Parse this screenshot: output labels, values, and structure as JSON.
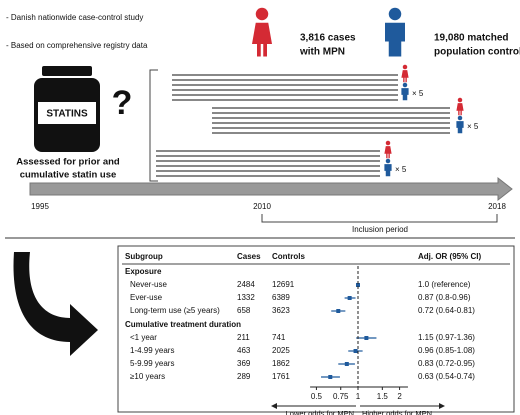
{
  "bullets": [
    "- Danish nationwide case-control study",
    "- Based on comprehensive registry data"
  ],
  "cases_lines": [
    "3,816 cases",
    "with MPN"
  ],
  "controls_lines": [
    "19,080 matched",
    "population controls"
  ],
  "jar_label": "STATINS",
  "question": "?",
  "assessed_lines": [
    "Assessed for prior and",
    "cumulative statin use"
  ],
  "multiplier": "× 5",
  "timeline": {
    "years": [
      "1995",
      "2010",
      "2018"
    ],
    "inclusion_period": "Inclusion period"
  },
  "forest": {
    "headers": [
      "Subgroup",
      "Cases",
      "Controls",
      "Adj. OR (95% CI)"
    ],
    "sections": [
      {
        "title": "Exposure",
        "rows": [
          {
            "subgroup": "Never-use",
            "cases": 2484,
            "controls": 12691,
            "or": 1.0,
            "ci": null,
            "label": "1.0 (reference)"
          },
          {
            "subgroup": "Ever-use",
            "cases": 1332,
            "controls": 6389,
            "or": 0.87,
            "ci": [
              0.8,
              0.96
            ],
            "label": "0.87 (0.8-0.96)"
          },
          {
            "subgroup": "Long-term use (≥5 years)",
            "cases": 658,
            "controls": 3623,
            "or": 0.72,
            "ci": [
              0.64,
              0.81
            ],
            "label": "0.72 (0.64-0.81)"
          }
        ]
      },
      {
        "title": "Cumulative treatment duration",
        "rows": [
          {
            "subgroup": "<1 year",
            "cases": 211,
            "controls": 741,
            "or": 1.15,
            "ci": [
              0.97,
              1.36
            ],
            "label": "1.15 (0.97-1.36)"
          },
          {
            "subgroup": "1-4.99 years",
            "cases": 463,
            "controls": 2025,
            "or": 0.96,
            "ci": [
              0.85,
              1.08
            ],
            "label": "0.96 (0.85-1.08)"
          },
          {
            "subgroup": "5-9.99 years",
            "cases": 369,
            "controls": 1862,
            "or": 0.83,
            "ci": [
              0.72,
              0.95
            ],
            "label": "0.83 (0.72-0.95)"
          },
          {
            "subgroup": "≥10 years",
            "cases": 289,
            "controls": 1761,
            "or": 0.63,
            "ci": [
              0.54,
              0.74
            ],
            "label": "0.63 (0.54-0.74)"
          }
        ]
      }
    ],
    "log_scale": true,
    "xlim": [
      0.45,
      2.3
    ],
    "xticks": [
      0.5,
      0.75,
      1,
      1.5,
      2
    ],
    "lower_label": "Lower odds for MPN",
    "higher_label": "Higher odds for MPN"
  }
}
